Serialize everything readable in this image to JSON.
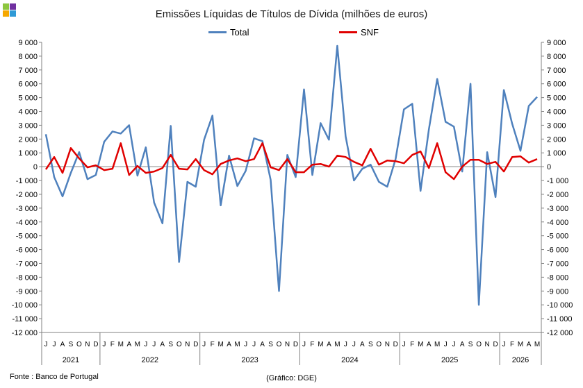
{
  "chart_data": {
    "type": "line",
    "title": "Emissões Líquidas de Títulos de Dívida (milhões de euros)",
    "ylim": [
      -12000,
      9000
    ],
    "ytick_step": 1000,
    "y_tick_labels": [
      "9 000",
      "8 000",
      "7 000",
      "6 000",
      "5 000",
      "4 000",
      "3 000",
      "2 000",
      "1 000",
      "0",
      "-1 000",
      "-2 000",
      "-3 000",
      "-4 000",
      "-5 000",
      "-6 000",
      "-7 000",
      "-8 000",
      "-9 000",
      "-10 000",
      "-11 000",
      "-12 000"
    ],
    "legend_position": "top-center",
    "grid": false,
    "months": [
      "J",
      "J",
      "A",
      "S",
      "O",
      "N",
      "D",
      "J",
      "F",
      "M",
      "A",
      "M",
      "J",
      "J",
      "A",
      "S",
      "O",
      "N",
      "D",
      "J",
      "F",
      "M",
      "A",
      "M",
      "J",
      "J",
      "A",
      "S",
      "O",
      "N",
      "D",
      "J",
      "F",
      "M",
      "A",
      "M",
      "J",
      "J",
      "A",
      "S",
      "O",
      "N",
      "D",
      "J",
      "F",
      "M",
      "A",
      "M",
      "J",
      "J",
      "A",
      "S",
      "O",
      "N",
      "D",
      "J",
      "F",
      "M",
      "A",
      "M"
    ],
    "years": [
      {
        "label": "2021",
        "start": 0,
        "count": 7
      },
      {
        "label": "2022",
        "start": 7,
        "count": 12
      },
      {
        "label": "2023",
        "start": 19,
        "count": 12
      },
      {
        "label": "2024",
        "start": 31,
        "count": 12
      },
      {
        "label": "2025",
        "start": 43,
        "count": 12
      },
      {
        "label": "2026",
        "start": 55,
        "count": 5
      }
    ],
    "series": [
      {
        "name": "Total",
        "color": "#4f81bd",
        "values": [
          2350,
          -750,
          -2150,
          -450,
          1050,
          -900,
          -600,
          1800,
          2550,
          2400,
          3000,
          -650,
          1400,
          -2600,
          -4100,
          2950,
          -6900,
          -1100,
          -1450,
          1950,
          3700,
          -2800,
          800,
          -1400,
          -300,
          2050,
          1850,
          -950,
          -9000,
          850,
          -750,
          5600,
          -600,
          3150,
          1950,
          8750,
          2200,
          -1000,
          -150,
          150,
          -1100,
          -1450,
          550,
          4150,
          4550,
          -1750,
          2700,
          6350,
          3250,
          2900,
          -350,
          6000,
          -10000,
          1050,
          -2200,
          5550,
          3100,
          1150,
          4400,
          5050
        ]
      },
      {
        "name": "SNF",
        "color": "#e00000",
        "values": [
          -200,
          700,
          -450,
          1350,
          600,
          -50,
          100,
          -250,
          -150,
          1700,
          -600,
          50,
          -450,
          -350,
          -100,
          850,
          -150,
          -200,
          550,
          -250,
          -550,
          200,
          450,
          600,
          400,
          550,
          1700,
          -50,
          -250,
          550,
          -400,
          -400,
          150,
          200,
          0,
          800,
          700,
          350,
          100,
          1300,
          150,
          450,
          400,
          250,
          850,
          1100,
          -100,
          1700,
          -400,
          -900,
          0,
          500,
          500,
          200,
          350,
          -350,
          700,
          750,
          300,
          550
        ]
      }
    ],
    "source": "Fonte : Banco de Portugal",
    "credit": "(Gráfico: DGE)"
  },
  "logo": {
    "colors": [
      "#8dc63f",
      "#7030a0",
      "#f6a800",
      "#2f9ad6"
    ]
  }
}
